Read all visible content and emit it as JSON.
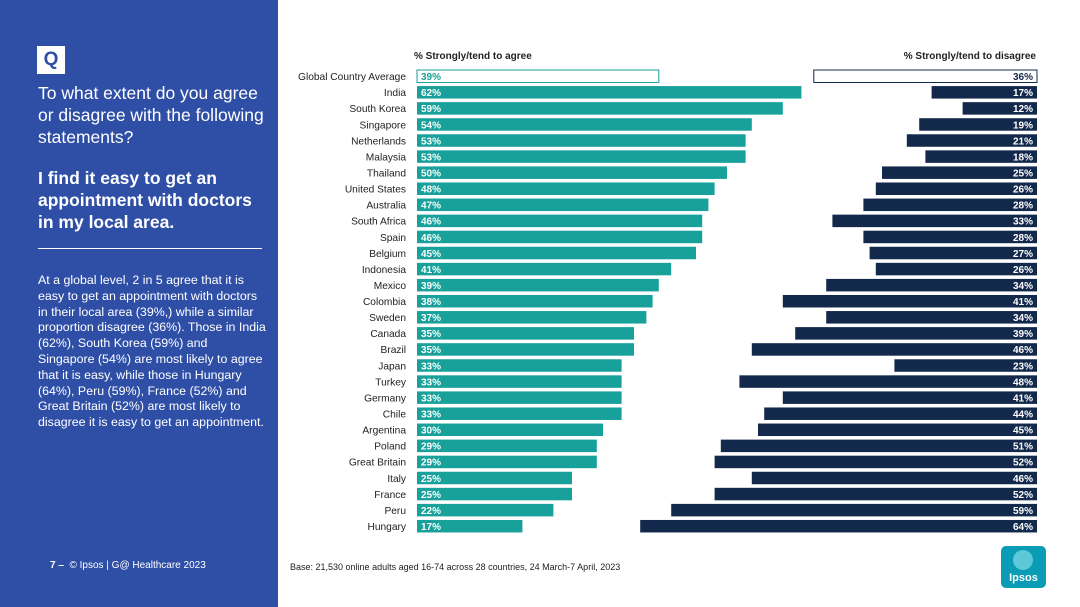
{
  "sidebar": {
    "badge": "Q",
    "question": "To what extent do you agree or disagree with the following statements?",
    "statement": "I find it easy to get an appointment with doctors in my local area.",
    "summary": "At a global level, 2 in 5 agree that it is easy to get an appointment with doctors in their local area (39%,) while a similar proportion disagree (36%). Those in India (62%), South Korea (59%) and Singapore (54%) are most likely to agree that it is easy, while those in Hungary (64%), Peru (59%), France (52%) and Great Britain (52%) are most likely to disagree it is easy to get an appointment.",
    "page_number": "7 –",
    "copyright": "© Ipsos | G@ Healthcare 2023"
  },
  "footer": {
    "base_note": "Base: 21,530 online adults aged 16-74 across 28 countries, 24 March-7 April, 2023",
    "logo_text": "Ipsos"
  },
  "colors": {
    "sidebar": "#2f4fa7",
    "agree": "#17a19a",
    "disagree": "#13294b"
  },
  "chart_data": {
    "type": "bar",
    "title": "",
    "agree_header": "% Strongly/tend to agree",
    "disagree_header": "% Strongly/tend to disagree",
    "xlim": [
      0,
      100
    ],
    "categories": [
      "Global Country Average",
      "India",
      "South Korea",
      "Singapore",
      "Netherlands",
      "Malaysia",
      "Thailand",
      "United States",
      "Australia",
      "South Africa",
      "Spain",
      "Belgium",
      "Indonesia",
      "Mexico",
      "Colombia",
      "Sweden",
      "Canada",
      "Brazil",
      "Japan",
      "Turkey",
      "Germany",
      "Chile",
      "Argentina",
      "Poland",
      "Great Britain",
      "Italy",
      "France",
      "Peru",
      "Hungary"
    ],
    "series": [
      {
        "name": "% Strongly/tend to agree",
        "values": [
          39,
          62,
          59,
          54,
          53,
          53,
          50,
          48,
          47,
          46,
          46,
          45,
          41,
          39,
          38,
          37,
          35,
          35,
          33,
          33,
          33,
          33,
          30,
          29,
          29,
          25,
          25,
          22,
          17
        ]
      },
      {
        "name": "% Strongly/tend to disagree",
        "values": [
          36,
          17,
          12,
          19,
          21,
          18,
          25,
          26,
          28,
          33,
          28,
          27,
          26,
          34,
          41,
          34,
          39,
          46,
          23,
          48,
          41,
          44,
          45,
          51,
          52,
          46,
          52,
          59,
          64
        ]
      }
    ]
  }
}
